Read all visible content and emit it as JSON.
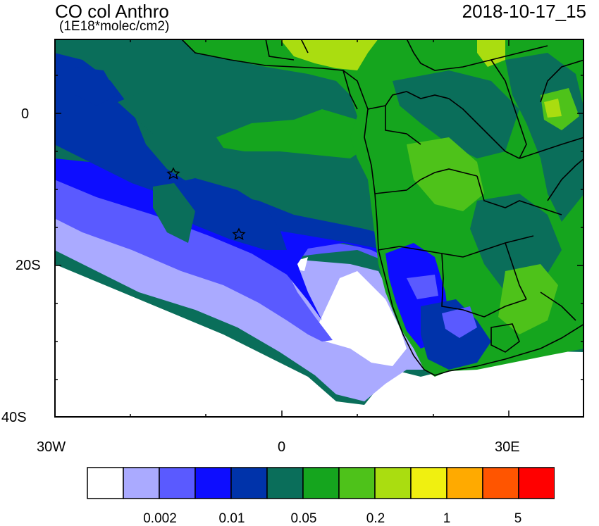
{
  "header": {
    "title": "CO col Anthro",
    "units": "(1E18*molec/cm2)",
    "datetime": "2018-10-17_15"
  },
  "axes": {
    "y_ticks": [
      {
        "value": 0,
        "label": "0"
      },
      {
        "value": -20,
        "label": "20S"
      },
      {
        "value": -40,
        "label": "40S"
      }
    ],
    "x_ticks": [
      {
        "value": -30,
        "label": "30W"
      },
      {
        "value": 0,
        "label": "0"
      },
      {
        "value": 30,
        "label": "30E"
      }
    ],
    "lon_range": [
      -30,
      40
    ],
    "lat_range": [
      -40,
      10
    ]
  },
  "markers": [
    {
      "name": "star",
      "lon": -14.5,
      "lat": -8
    },
    {
      "name": "star",
      "lon": -5.7,
      "lat": -16
    }
  ],
  "colorbar": {
    "colors": [
      "#ffffff",
      "#aaaaff",
      "#5a5aff",
      "#0d0dff",
      "#0033aa",
      "#0a6e5a",
      "#15a51e",
      "#4ec21a",
      "#aadd10",
      "#f0f010",
      "#ffaa00",
      "#ff5500",
      "#ff0000"
    ],
    "labels": [
      "0.002",
      "0.01",
      "0.05",
      "0.2",
      "1",
      "5"
    ]
  },
  "map_colors": {
    "ocean_far": "#ffffff",
    "light_blue": "#aaaaff",
    "mid_blue": "#5a5aff",
    "blue": "#0d0dff",
    "dark_blue": "#0033aa",
    "teal": "#0a6e5a",
    "green": "#15a51e",
    "lime": "#4ec21a",
    "yellow_green": "#aadd10"
  }
}
